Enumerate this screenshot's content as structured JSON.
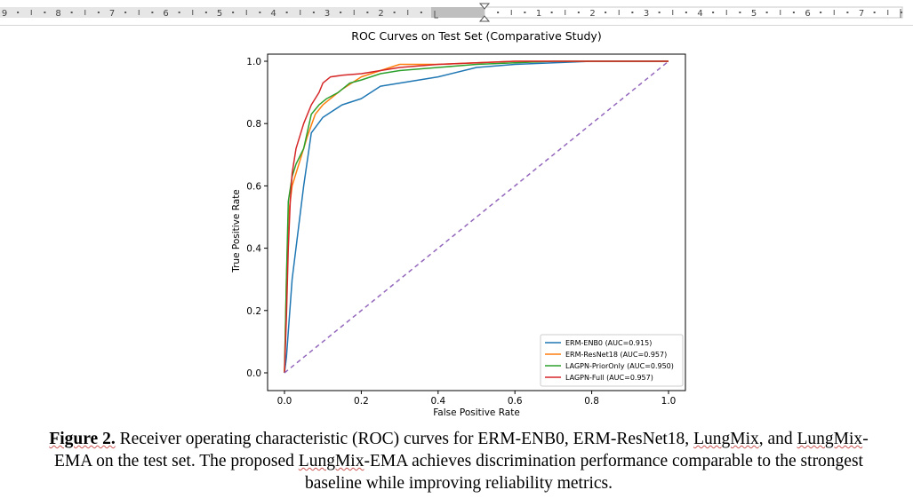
{
  "ruler": {
    "left_numbers": [
      "9",
      "8",
      "7",
      "6",
      "5",
      "4",
      "3",
      "2"
    ],
    "right_numbers": [
      "1",
      "2",
      "3",
      "4",
      "5",
      "6",
      "7"
    ]
  },
  "chart_data": {
    "type": "line",
    "title": "ROC Curves on Test Set (Comparative Study)",
    "xlabel": "False Positive Rate",
    "ylabel": "True Positive Rate",
    "xlim": [
      0,
      1
    ],
    "ylim": [
      0,
      1
    ],
    "xticks": [
      "0.0",
      "0.2",
      "0.4",
      "0.6",
      "0.8",
      "1.0"
    ],
    "yticks": [
      "0.0",
      "0.2",
      "0.4",
      "0.6",
      "0.8",
      "1.0"
    ],
    "grid": false,
    "legend_position": "lower-right",
    "series": [
      {
        "name": "ERM-ENB0 (AUC=0.915)",
        "color": "#1f77b4",
        "x": [
          0,
          0.005,
          0.02,
          0.05,
          0.07,
          0.1,
          0.15,
          0.2,
          0.25,
          0.3,
          0.35,
          0.4,
          0.5,
          0.6,
          0.7,
          0.8,
          1.0
        ],
        "y": [
          0,
          0.05,
          0.3,
          0.6,
          0.77,
          0.82,
          0.86,
          0.88,
          0.92,
          0.93,
          0.94,
          0.95,
          0.98,
          0.99,
          0.995,
          1.0,
          1.0
        ]
      },
      {
        "name": "ERM-ResNet18 (AUC=0.957)",
        "color": "#ff7f0e",
        "x": [
          0,
          0.005,
          0.01,
          0.02,
          0.04,
          0.06,
          0.08,
          0.1,
          0.12,
          0.15,
          0.2,
          0.25,
          0.3,
          0.4,
          0.5,
          0.6,
          0.7,
          0.8,
          1.0
        ],
        "y": [
          0,
          0.3,
          0.5,
          0.6,
          0.68,
          0.76,
          0.83,
          0.86,
          0.88,
          0.91,
          0.95,
          0.97,
          0.99,
          0.99,
          0.995,
          1.0,
          1.0,
          1.0,
          1.0
        ]
      },
      {
        "name": "LAGPN-PriorOnly (AUC=0.950)",
        "color": "#2ca02c",
        "x": [
          0,
          0.005,
          0.01,
          0.02,
          0.03,
          0.05,
          0.07,
          0.09,
          0.11,
          0.14,
          0.17,
          0.2,
          0.25,
          0.3,
          0.4,
          0.5,
          0.6,
          0.7,
          0.8,
          1.0
        ],
        "y": [
          0,
          0.3,
          0.55,
          0.63,
          0.67,
          0.72,
          0.83,
          0.86,
          0.88,
          0.9,
          0.93,
          0.94,
          0.96,
          0.97,
          0.98,
          0.99,
          0.995,
          1.0,
          1.0,
          1.0
        ]
      },
      {
        "name": "LAGPN-Full (AUC=0.957)",
        "color": "#d62728",
        "x": [
          0,
          0.005,
          0.01,
          0.015,
          0.02,
          0.03,
          0.05,
          0.07,
          0.09,
          0.1,
          0.12,
          0.15,
          0.2,
          0.25,
          0.3,
          0.4,
          0.5,
          0.6,
          0.7,
          0.8,
          1.0
        ],
        "y": [
          0,
          0.18,
          0.4,
          0.55,
          0.64,
          0.72,
          0.8,
          0.86,
          0.9,
          0.93,
          0.95,
          0.955,
          0.96,
          0.97,
          0.98,
          0.99,
          0.995,
          1.0,
          1.0,
          1.0,
          1.0
        ]
      },
      {
        "name": "",
        "color": "#9467bd",
        "dashed": true,
        "x": [
          0,
          1
        ],
        "y": [
          0,
          1
        ]
      }
    ]
  },
  "caption": {
    "label": "Figure 2.",
    "line1_a": " Receiver operating characteristic (ROC) curves for ERM-ENB0, ERM-ResNet18, ",
    "line1_sq1": "LungMix",
    "line1_b": ", and ",
    "line1_sq2": "LungMix",
    "line1_c": "-",
    "line2_a": "EMA on the test set. The proposed ",
    "line2_sq": "LungMix",
    "line2_b": "-EMA achieves discrimination performance comparable to the strongest",
    "line3": "baseline while improving reliability metrics."
  }
}
